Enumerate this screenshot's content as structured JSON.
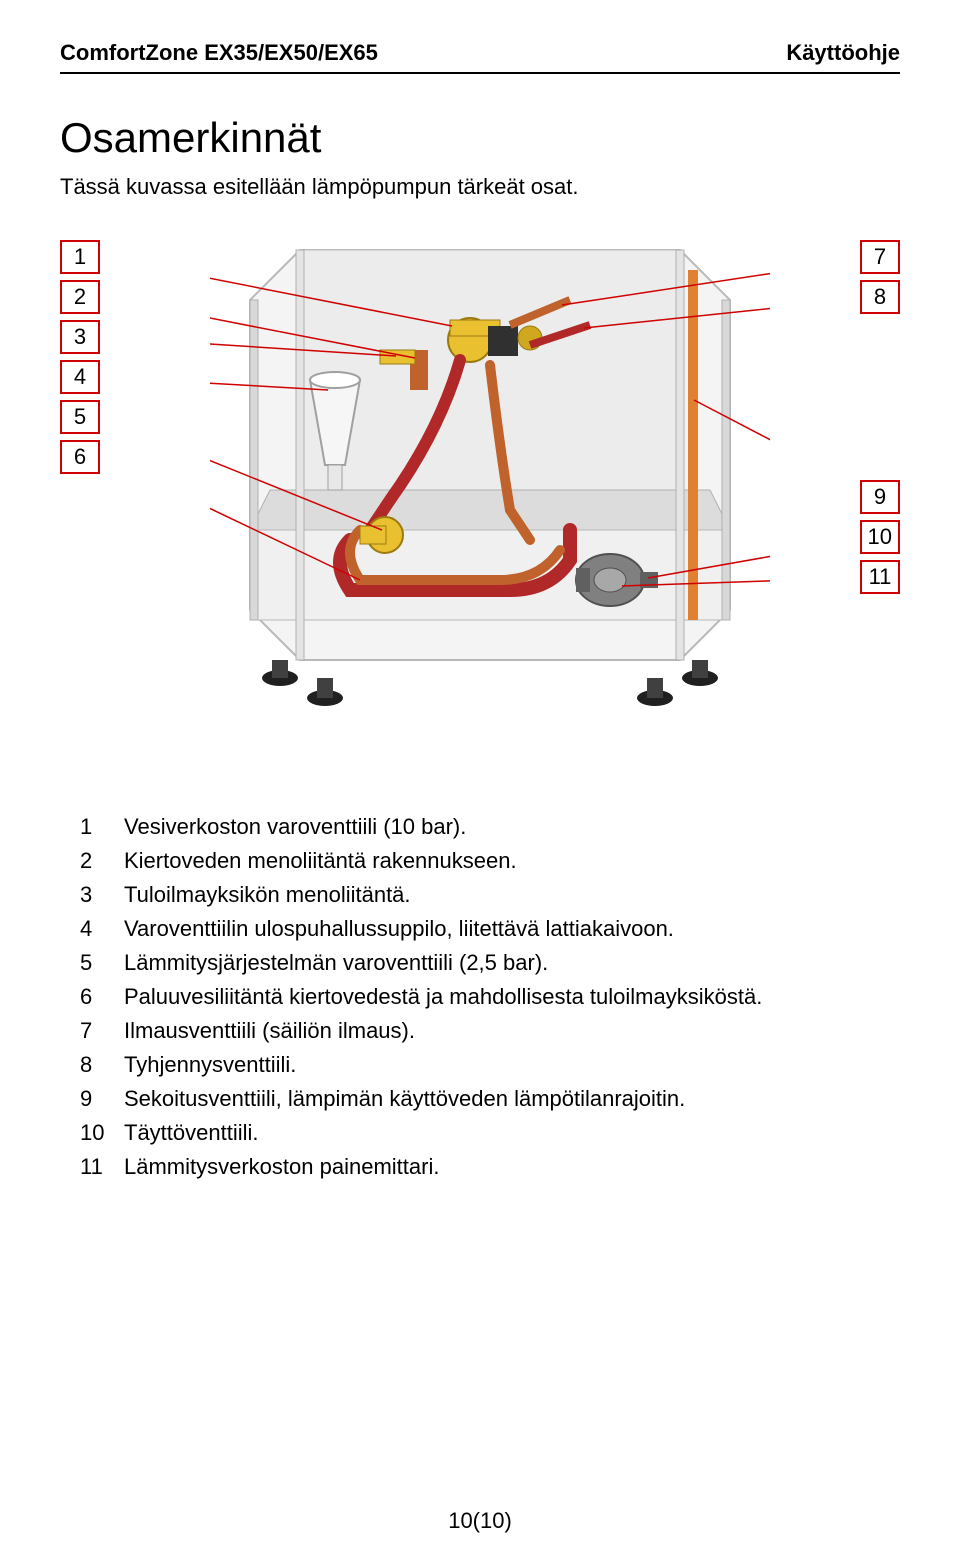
{
  "header": {
    "left": "ComfortZone EX35/EX50/EX65",
    "right": "Käyttöohje"
  },
  "section": {
    "title": "Osamerkinnät",
    "intro": "Tässä kuvassa esitellään lämpöpumpun tärkeät osat."
  },
  "diagram": {
    "left_labels": [
      "1",
      "2",
      "3",
      "4",
      "5",
      "6"
    ],
    "right_labels_top": [
      "7",
      "8"
    ],
    "right_labels_bottom": [
      "9",
      "10",
      "11"
    ],
    "label_border_color": "#d00000",
    "label_bg_color": "#ffffff",
    "label_fontsize": 22,
    "machine": {
      "panel_fill": "#e8e8e8",
      "panel_stroke": "#a0a0a0",
      "frame_stroke": "#b8b8b8",
      "pipe_copper": "#c0622c",
      "pipe_red": "#b02828",
      "pipe_orange": "#e08030",
      "valve_yellow": "#e8c030",
      "valve_dark": "#303030",
      "pump_gray": "#808080",
      "funnel_fill": "#f0f0f0",
      "feet_fill": "#202020"
    }
  },
  "parts": [
    {
      "n": "1",
      "desc": "Vesiverkoston varoventtiili (10 bar)."
    },
    {
      "n": "2",
      "desc": "Kiertoveden menoliitäntä rakennukseen."
    },
    {
      "n": "3",
      "desc": "Tuloilmayksikön menoliitäntä."
    },
    {
      "n": "4",
      "desc": "Varoventtiilin ulospuhallussuppilo, liitettävä lattiakaivoon."
    },
    {
      "n": "5",
      "desc": "Lämmitysjärjestelmän varoventtiili (2,5 bar)."
    },
    {
      "n": "6",
      "desc": "Paluuvesiliitäntä kiertovedestä ja mahdollisesta tuloilmayksiköstä."
    },
    {
      "n": "7",
      "desc": "Ilmausventtiili (säiliön ilmaus)."
    },
    {
      "n": "8",
      "desc": "Tyhjennysventtiili."
    },
    {
      "n": "9",
      "desc": "Sekoitusventtiili, lämpimän käyttöveden lämpötilanrajoitin."
    },
    {
      "n": "10",
      "desc": "Täyttöventtiili."
    },
    {
      "n": "11",
      "desc": "Lämmitysverkoston painemittari."
    }
  ],
  "footer": {
    "page": "10(10)"
  }
}
